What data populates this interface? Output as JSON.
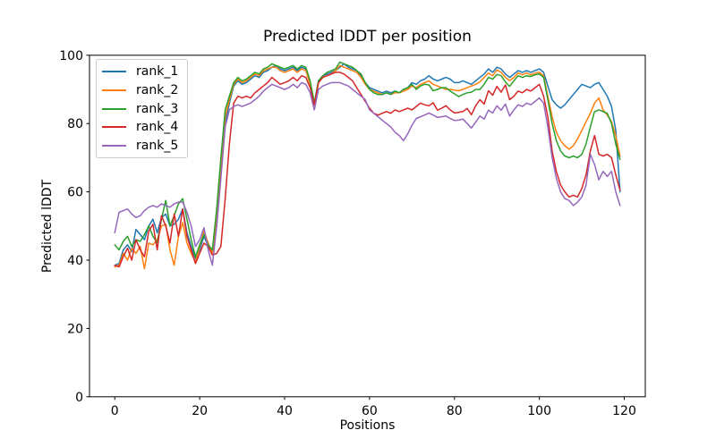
{
  "chart_data": {
    "type": "line",
    "title": "Predicted lDDT per position",
    "xlabel": "Positions",
    "ylabel": "Predicted lDDT",
    "xlim": [
      -5.95,
      124.95
    ],
    "ylim": [
      0,
      100
    ],
    "x_ticks": [
      0,
      20,
      40,
      60,
      80,
      100,
      120
    ],
    "y_ticks": [
      0,
      20,
      40,
      60,
      80,
      100
    ],
    "grid": false,
    "legend_position": "upper left",
    "x_start": 0,
    "x_step": 1,
    "series": [
      {
        "name": "rank_1",
        "color": "#1f77b4",
        "values": [
          38.5,
          39,
          43,
          44.5,
          42.5,
          49,
          47.5,
          46,
          50,
          52,
          48,
          52.5,
          53.5,
          50,
          50.5,
          52,
          55,
          48,
          44,
          40.5,
          43,
          47,
          44,
          42.5,
          50,
          65,
          80,
          86,
          91,
          92.5,
          91.5,
          92,
          93,
          94,
          93.5,
          95,
          95.5,
          96.5,
          97,
          96,
          95.5,
          96,
          96.5,
          95.5,
          96.5,
          96,
          92,
          86,
          92.5,
          94,
          94.5,
          95,
          95.5,
          96.5,
          97.5,
          96.5,
          96,
          95.5,
          94,
          92,
          90.5,
          90,
          89.5,
          89,
          89.5,
          89,
          89.5,
          89,
          90,
          90.5,
          92,
          91.5,
          92.5,
          93,
          94,
          93,
          92.5,
          93,
          93.5,
          93,
          92,
          92,
          92.5,
          92,
          91.5,
          92.5,
          93.5,
          94.5,
          96,
          95,
          96.5,
          96,
          94.5,
          93.5,
          94.5,
          95.5,
          95,
          95.5,
          95,
          95.5,
          96,
          95,
          91,
          87,
          85.5,
          84.5,
          85.5,
          87,
          88.5,
          90,
          91.5,
          91,
          90.5,
          91.5,
          92,
          90,
          88,
          85,
          78,
          60
        ]
      },
      {
        "name": "rank_2",
        "color": "#ff7f0e",
        "values": [
          38,
          38.5,
          42,
          40,
          43.5,
          42,
          44,
          37.5,
          45,
          44.5,
          46,
          50,
          50.5,
          43,
          38.5,
          47,
          51,
          45,
          42,
          39.5,
          44,
          48.5,
          45,
          42,
          52,
          67,
          82,
          87,
          91.5,
          93,
          92,
          92.5,
          93.5,
          94.5,
          94,
          95.5,
          96,
          96.5,
          96.5,
          95.5,
          95,
          95.5,
          96,
          95,
          96,
          95.5,
          91.5,
          85.5,
          92,
          93.5,
          94,
          94.5,
          95.5,
          97,
          96.5,
          96,
          95.5,
          95,
          93.5,
          91.5,
          90,
          89.5,
          89,
          88.5,
          89,
          88.5,
          89,
          89,
          89.5,
          90,
          91,
          90.5,
          91.5,
          92,
          92.5,
          91.5,
          91,
          90.5,
          90,
          90,
          89.8,
          89.6,
          90,
          90.5,
          91,
          91.5,
          92.2,
          93.5,
          94.8,
          94,
          95.7,
          95,
          93.5,
          92.6,
          93.5,
          94.8,
          94.3,
          94.8,
          94.3,
          94.8,
          95,
          94,
          88,
          82,
          77.5,
          75,
          73.5,
          72.5,
          73.5,
          75.5,
          78,
          80.5,
          83,
          86,
          87.5,
          84,
          82.5,
          80.5,
          76.5,
          70.5
        ]
      },
      {
        "name": "rank_3",
        "color": "#2ca02c",
        "values": [
          44.5,
          43,
          45.5,
          47,
          44,
          46,
          45.5,
          47.5,
          50,
          47,
          45,
          52,
          57.5,
          50,
          53,
          56.5,
          58,
          52,
          46,
          41,
          44.5,
          47.5,
          44.5,
          43,
          55,
          70,
          84,
          88,
          92,
          93.5,
          92.5,
          93,
          94,
          95,
          94.5,
          96,
          96.5,
          97.5,
          97,
          96.5,
          96,
          96.5,
          97,
          96,
          97,
          96.5,
          92.5,
          86,
          92.5,
          94,
          95,
          95.5,
          96,
          98,
          97.5,
          97,
          96.5,
          95.5,
          94.5,
          92,
          90,
          89,
          88.5,
          88.5,
          89,
          88.5,
          89.5,
          89,
          90,
          90.5,
          91.5,
          90,
          91,
          91.5,
          91.3,
          89.6,
          90,
          90.5,
          90.5,
          89.5,
          88.7,
          87.9,
          88.5,
          89,
          89.2,
          90,
          90,
          91.5,
          93.5,
          93,
          94.4,
          94,
          92.2,
          90.9,
          92.5,
          94,
          93.5,
          94,
          93.8,
          94.3,
          94.5,
          93.5,
          87,
          80,
          75,
          72,
          70.5,
          70,
          70.5,
          70,
          71,
          74,
          79,
          83.5,
          84,
          83.5,
          83,
          80,
          74,
          69.5
        ]
      },
      {
        "name": "rank_4",
        "color": "#d62728",
        "values": [
          38.5,
          38,
          41,
          43.5,
          40,
          46,
          43,
          41,
          48.5,
          50.5,
          43,
          53,
          50,
          45,
          53.5,
          47,
          55,
          47,
          43,
          39,
          42,
          45,
          44,
          41.5,
          42,
          44,
          58,
          74,
          86,
          88,
          87.5,
          88,
          87.5,
          89,
          90,
          91,
          92,
          93.5,
          92.5,
          91.5,
          92,
          92.5,
          93.5,
          92.5,
          94,
          93.5,
          90.5,
          85.5,
          92,
          93.5,
          94,
          94.5,
          95,
          95,
          94.5,
          93.5,
          92.5,
          90.5,
          88.5,
          86.5,
          84.5,
          83,
          82.5,
          83,
          83.5,
          83,
          84,
          83.5,
          84,
          84.5,
          84,
          85,
          86,
          85.5,
          85.2,
          86.1,
          83.9,
          84.5,
          85.2,
          84,
          83.1,
          83.3,
          83.5,
          84.4,
          82.6,
          85.2,
          87,
          85.7,
          89.6,
          88.3,
          90.9,
          89.2,
          91.3,
          87,
          88,
          89.5,
          89,
          90,
          89.5,
          90.5,
          91.5,
          88,
          82,
          72,
          66,
          62,
          60,
          58.5,
          59,
          58.5,
          61,
          65,
          72,
          76.5,
          71,
          70.5,
          71,
          70,
          65,
          60.5
        ]
      },
      {
        "name": "rank_5",
        "color": "#9467bd",
        "values": [
          48,
          54,
          54.5,
          55,
          53.5,
          52.5,
          53,
          54.5,
          55.5,
          56,
          55.5,
          56.5,
          56,
          55.5,
          56.5,
          57,
          57,
          54,
          50,
          44,
          46,
          49.5,
          43,
          38.5,
          50,
          64,
          79,
          84,
          85,
          85.5,
          85,
          85.5,
          86,
          87,
          88,
          89.5,
          90.5,
          91.5,
          91,
          90.5,
          90,
          90.5,
          91.5,
          90.5,
          92,
          91.5,
          89,
          84,
          90,
          91,
          91.5,
          92,
          92,
          92,
          91.5,
          91,
          90,
          89,
          88,
          87,
          84,
          83,
          82,
          81,
          80,
          79,
          77.5,
          76.5,
          75,
          77,
          79.5,
          81.5,
          82,
          82.5,
          83.1,
          82.5,
          81.8,
          82,
          82.2,
          81.5,
          80.9,
          81,
          81.3,
          80,
          78.7,
          80.4,
          82.2,
          81.3,
          83.9,
          83.1,
          85.2,
          83.9,
          85.7,
          82.2,
          84,
          85.5,
          85,
          86,
          85.5,
          86.5,
          87.5,
          86,
          79,
          70,
          64,
          60,
          58,
          57.5,
          56,
          57,
          58.5,
          62,
          71,
          68,
          63.5,
          66,
          64.5,
          66,
          60,
          56
        ]
      }
    ]
  }
}
